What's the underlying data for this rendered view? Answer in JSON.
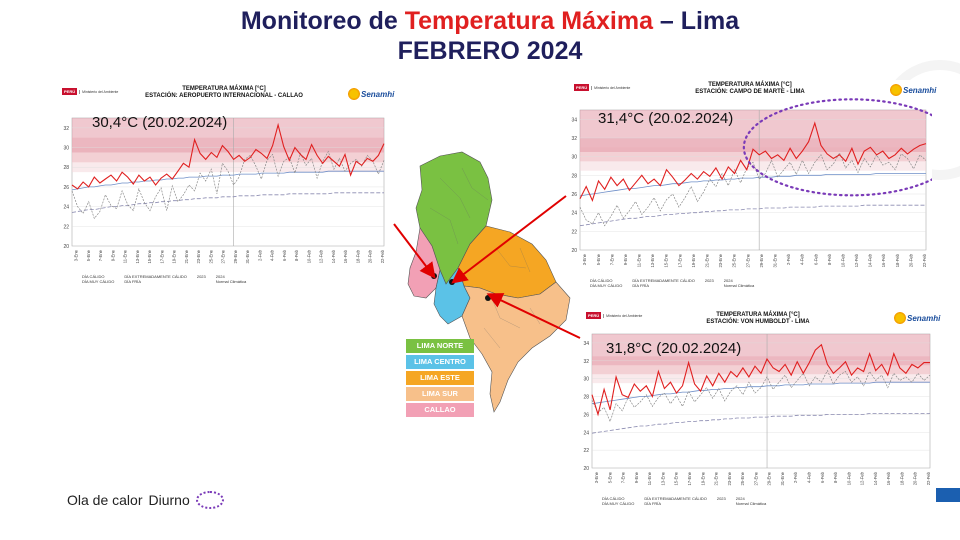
{
  "title": {
    "prefix": "Monitoreo de ",
    "highlight": "Temperatura Máxima",
    "suffix": " – Lima",
    "line2": "FEBRERO 2024"
  },
  "logos": {
    "peru": "PERÚ",
    "ministerio": "Ministerio del Ambiente",
    "senamhi": "Senamhi"
  },
  "colors": {
    "title": "#1f1f5c",
    "highlight": "#e02020",
    "series_2024": "#e02020",
    "series_2023": "#888888",
    "normal": "#6f8fc8",
    "dia_frio": "#8a8ab0",
    "band_calido": "#f4d9dd",
    "band_muy_calido": "#eeb9c1",
    "band_extremo": "#e49aa7",
    "lima_norte": "#7ac142",
    "lima_centro": "#5bc2e7",
    "lima_este": "#f5a623",
    "lima_sur": "#f7c08a",
    "callao": "#f2a0b5",
    "ola_calor": "#7a3ab8"
  },
  "legend_labels": {
    "dia_calido": "DÍA CÁLIDO",
    "dia_muy_calido": "DÍA MUY CÁLIDO",
    "dia_extremo": "DÍA EXTREMADAMENTE CÁLIDO",
    "dia_frio": "DÍA FRÍA",
    "s2023": "2023",
    "s2024": "2024",
    "normal": "Normal Climática"
  },
  "map_legend": [
    {
      "label": "LIMA NORTE",
      "color": "#7ac142"
    },
    {
      "label": "LIMA CENTRO",
      "color": "#5bc2e7"
    },
    {
      "label": "LIMA ESTE",
      "color": "#f5a623"
    },
    {
      "label": "LIMA SUR",
      "color": "#f7c08a"
    },
    {
      "label": "CALLAO",
      "color": "#f2a0b5"
    }
  ],
  "bottom_legend": {
    "label1": "Ola de calor",
    "label2": "Diurno"
  },
  "chart_data": [
    {
      "type": "line",
      "title": "TEMPERATURA MÁXIMA [°C]",
      "subtitle": "ESTACIÓN: AEROPUERTO INTERNACIONAL - CALLAO",
      "annotation": "30,4°C (20.02.2024)",
      "ylim": [
        20,
        33
      ],
      "yticks": [
        20,
        22,
        24,
        26,
        28,
        30,
        32
      ],
      "xticks": [
        "3-Ene",
        "5-Ene",
        "7-Ene",
        "9-Ene",
        "11-Ene",
        "13-Ene",
        "15-Ene",
        "17-Ene",
        "19-Ene",
        "21-Ene",
        "23-Ene",
        "25-Ene",
        "27-Ene",
        "29-Ene",
        "31-Ene",
        "2-Feb",
        "4-Feb",
        "6-Feb",
        "8-Feb",
        "10-Feb",
        "12-Feb",
        "14-Feb",
        "16-Feb",
        "18-Feb",
        "20-Feb",
        "22-Feb"
      ],
      "series": [
        {
          "name": "2024",
          "values": [
            26.2,
            25.8,
            26.5,
            26.0,
            27.0,
            26.4,
            26.8,
            27.2,
            26.6,
            27.5,
            27.0,
            26.3,
            27.2,
            26.6,
            27.0,
            26.2,
            26.9,
            27.3,
            26.8,
            27.6,
            28.4,
            28.0,
            30.8,
            29.4,
            28.8,
            29.5,
            29.0,
            30.2,
            29.6,
            28.8,
            29.2,
            28.6,
            29.0,
            29.8,
            29.4,
            28.9,
            30.2,
            32.3,
            30.1,
            28.7,
            30.0,
            29.3,
            28.8,
            30.3,
            29.2,
            28.4,
            29.1,
            28.6,
            28.1,
            29.3,
            27.2,
            28.6,
            28.2,
            28.9,
            28.6,
            29.2,
            30.4
          ]
        },
        {
          "name": "2023",
          "values": [
            25.6,
            24.0,
            23.3,
            24.5,
            22.8,
            23.5,
            25.2,
            24.1,
            23.8,
            25.6,
            24.2,
            23.6,
            25.8,
            24.4,
            23.6,
            25.0,
            25.9,
            23.6,
            26.1,
            24.5,
            25.2,
            26.2,
            25.6,
            27.4,
            26.6,
            27.8,
            25.3,
            28.4,
            27.6,
            26.2,
            27.0,
            28.8,
            29.2,
            28.1,
            26.8,
            28.7,
            29.3,
            27.1,
            28.6,
            29.0,
            27.4,
            29.4,
            28.2,
            28.9,
            26.9,
            28.6,
            29.6,
            27.8,
            28.9,
            27.6,
            28.4,
            28.8,
            28.1,
            29.2,
            28.6,
            27.3,
            28.7
          ]
        },
        {
          "name": "Normal Climática",
          "values": [
            25.7,
            25.8,
            25.9,
            26.0,
            26.0,
            26.1,
            26.2,
            26.2,
            26.3,
            26.4,
            26.4,
            26.5,
            26.5,
            26.6,
            26.6,
            26.7,
            26.7,
            26.8,
            26.8,
            26.9,
            26.9,
            27.0,
            27.0,
            27.0,
            27.1,
            27.1,
            27.1,
            27.2,
            27.2,
            27.2,
            27.3,
            27.3,
            27.3,
            27.3,
            27.4,
            27.4,
            27.4,
            27.4,
            27.4,
            27.5,
            27.5,
            27.5,
            27.5,
            27.5,
            27.5,
            27.5,
            27.6,
            27.6,
            27.6,
            27.6,
            27.6,
            27.6,
            27.6,
            27.6,
            27.6,
            27.6,
            27.6
          ]
        },
        {
          "name": "DÍA FRÍA",
          "values": [
            23.4,
            23.5,
            23.6,
            23.7,
            23.7,
            23.8,
            23.9,
            24.0,
            24.0,
            24.1,
            24.1,
            24.2,
            24.3,
            24.3,
            24.4,
            24.4,
            24.5,
            24.5,
            24.6,
            24.6,
            24.7,
            24.7,
            24.8,
            24.8,
            24.9,
            24.9,
            24.9,
            25.0,
            25.0,
            25.0,
            25.1,
            25.1,
            25.1,
            25.1,
            25.2,
            25.2,
            25.2,
            25.2,
            25.2,
            25.3,
            25.3,
            25.3,
            25.3,
            25.3,
            25.3,
            25.3,
            25.3,
            25.4,
            25.4,
            25.4,
            25.4,
            25.4,
            25.4,
            25.4,
            25.4,
            25.4,
            25.4
          ]
        }
      ],
      "bands": {
        "calido": [
          27.5,
          30.0
        ],
        "muy_calido": [
          28.5,
          31.0
        ],
        "extremo": [
          29.5,
          33.0
        ]
      }
    },
    {
      "type": "line",
      "title": "TEMPERATURA MÁXIMA [°C]",
      "subtitle": "ESTACIÓN: CAMPO DE MARTE - LIMA",
      "annotation": "31,4°C (20.02.2024)",
      "ylim": [
        20,
        35
      ],
      "yticks": [
        20,
        22,
        24,
        26,
        28,
        30,
        32,
        34
      ],
      "xticks": [
        "3-Ene",
        "5-Ene",
        "7-Ene",
        "9-Ene",
        "11-Ene",
        "13-Ene",
        "15-Ene",
        "17-Ene",
        "19-Ene",
        "21-Ene",
        "23-Ene",
        "25-Ene",
        "27-Ene",
        "29-Ene",
        "31-Ene",
        "2-Feb",
        "4-Feb",
        "6-Feb",
        "8-Feb",
        "10-Feb",
        "12-Feb",
        "14-Feb",
        "16-Feb",
        "18-Feb",
        "20-Feb",
        "22-Feb"
      ],
      "series": [
        {
          "name": "2024",
          "values": [
            25.5,
            26.8,
            25.3,
            27.4,
            26.5,
            27.8,
            26.9,
            27.6,
            26.4,
            27.2,
            28.0,
            27.1,
            27.6,
            26.9,
            28.6,
            27.8,
            26.9,
            27.5,
            28.2,
            27.6,
            28.4,
            27.9,
            28.8,
            27.6,
            28.9,
            28.2,
            29.6,
            28.6,
            30.8,
            30.2,
            30.6,
            29.8,
            30.2,
            29.6,
            30.9,
            29.8,
            30.6,
            31.6,
            33.6,
            31.2,
            30.3,
            29.8,
            30.2,
            29.5,
            30.9,
            29.2,
            30.6,
            31.0,
            30.2,
            30.6,
            29.8,
            30.2,
            30.9,
            30.3,
            30.8,
            31.2,
            31.4
          ]
        },
        {
          "name": "2023",
          "values": [
            24.6,
            23.2,
            22.8,
            24.0,
            22.6,
            23.6,
            24.8,
            23.4,
            24.2,
            25.2,
            23.8,
            24.6,
            25.6,
            24.2,
            25.4,
            26.0,
            24.6,
            25.6,
            26.8,
            25.2,
            26.2,
            27.6,
            26.8,
            28.2,
            26.9,
            28.6,
            27.2,
            28.8,
            29.4,
            27.6,
            28.2,
            29.6,
            27.8,
            28.6,
            29.4,
            28.1,
            29.6,
            28.2,
            29.4,
            30.2,
            28.6,
            29.2,
            30.4,
            28.8,
            29.6,
            28.3,
            29.8,
            28.9,
            30.2,
            29.1,
            29.4,
            28.6,
            30.3,
            29.8,
            28.7,
            30.2,
            29.6
          ]
        },
        {
          "name": "Normal Climática",
          "values": [
            25.8,
            25.9,
            26.0,
            26.1,
            26.2,
            26.3,
            26.4,
            26.5,
            26.6,
            26.6,
            26.7,
            26.8,
            26.9,
            26.9,
            27.0,
            27.1,
            27.1,
            27.2,
            27.3,
            27.3,
            27.4,
            27.4,
            27.5,
            27.5,
            27.6,
            27.6,
            27.7,
            27.7,
            27.7,
            27.8,
            27.8,
            27.8,
            27.9,
            27.9,
            27.9,
            28.0,
            28.0,
            28.0,
            28.0,
            28.0,
            28.1,
            28.1,
            28.1,
            28.1,
            28.1,
            28.1,
            28.1,
            28.1,
            28.2,
            28.2,
            28.2,
            28.2,
            28.2,
            28.2,
            28.2,
            28.2,
            28.2
          ]
        },
        {
          "name": "DÍA FRÍA",
          "values": [
            22.6,
            22.7,
            22.8,
            22.9,
            23.0,
            23.1,
            23.2,
            23.3,
            23.4,
            23.4,
            23.5,
            23.6,
            23.6,
            23.7,
            23.8,
            23.8,
            23.9,
            23.9,
            24.0,
            24.0,
            24.1,
            24.1,
            24.2,
            24.2,
            24.3,
            24.3,
            24.3,
            24.4,
            24.4,
            24.4,
            24.5,
            24.5,
            24.5,
            24.5,
            24.6,
            24.6,
            24.6,
            24.6,
            24.6,
            24.7,
            24.7,
            24.7,
            24.7,
            24.7,
            24.7,
            24.7,
            24.8,
            24.8,
            24.8,
            24.8,
            24.8,
            24.8,
            24.8,
            24.8,
            24.8,
            24.8,
            24.8
          ]
        }
      ],
      "bands": {
        "calido": [
          28.5,
          31.0
        ],
        "muy_calido": [
          29.5,
          32.0
        ],
        "extremo": [
          30.5,
          35.0
        ]
      }
    },
    {
      "type": "line",
      "title": "TEMPERATURA MÁXIMA [°C]",
      "subtitle": "ESTACIÓN: VON HUMBOLDT - LIMA",
      "annotation": "31,8°C (20.02.2024)",
      "ylim": [
        20,
        35
      ],
      "yticks": [
        20,
        22,
        24,
        26,
        28,
        30,
        32,
        34
      ],
      "xticks": [
        "3-Ene",
        "5-Ene",
        "7-Ene",
        "9-Ene",
        "11-Ene",
        "13-Ene",
        "15-Ene",
        "17-Ene",
        "19-Ene",
        "21-Ene",
        "23-Ene",
        "25-Ene",
        "27-Ene",
        "29-Ene",
        "31-Ene",
        "2-Feb",
        "4-Feb",
        "6-Feb",
        "8-Feb",
        "10-Feb",
        "12-Feb",
        "14-Feb",
        "16-Feb",
        "18-Feb",
        "20-Feb",
        "22-Feb"
      ],
      "series": [
        {
          "name": "2024",
          "values": [
            28.2,
            26.0,
            28.8,
            26.5,
            30.2,
            28.2,
            27.9,
            29.4,
            28.6,
            29.2,
            28.0,
            30.8,
            28.9,
            29.6,
            28.4,
            29.2,
            31.8,
            29.4,
            28.6,
            30.3,
            29.2,
            30.6,
            29.6,
            30.8,
            30.2,
            31.2,
            30.2,
            31.4,
            30.6,
            32.2,
            31.2,
            30.8,
            31.6,
            30.4,
            31.9,
            30.6,
            31.8,
            33.2,
            33.8,
            31.6,
            30.6,
            31.2,
            31.9,
            30.4,
            31.2,
            30.8,
            32.8,
            30.9,
            31.6,
            30.4,
            32.8,
            31.2,
            30.6,
            31.6,
            31.2,
            31.8,
            31.8
          ]
        },
        {
          "name": "2023",
          "values": [
            27.6,
            26.2,
            26.8,
            25.2,
            27.2,
            26.4,
            27.9,
            26.8,
            27.4,
            28.2,
            26.9,
            27.9,
            28.4,
            27.2,
            28.1,
            26.9,
            28.6,
            27.4,
            28.2,
            29.0,
            27.8,
            28.9,
            27.5,
            28.6,
            29.2,
            28.2,
            29.6,
            28.4,
            29.0,
            30.2,
            28.8,
            29.6,
            30.4,
            29.0,
            29.8,
            30.6,
            29.2,
            30.2,
            29.6,
            30.9,
            29.4,
            30.4,
            30.8,
            29.6,
            30.2,
            29.2,
            30.8,
            29.8,
            30.4,
            29.0,
            30.6,
            29.8,
            30.2,
            29.6,
            30.6,
            29.8,
            30.4
          ]
        },
        {
          "name": "Normal Climática",
          "values": [
            27.2,
            27.3,
            27.4,
            27.5,
            27.6,
            27.7,
            27.8,
            27.9,
            28.0,
            28.0,
            28.1,
            28.2,
            28.3,
            28.3,
            28.4,
            28.5,
            28.5,
            28.6,
            28.7,
            28.7,
            28.8,
            28.8,
            28.9,
            28.9,
            29.0,
            29.0,
            29.1,
            29.1,
            29.1,
            29.2,
            29.2,
            29.2,
            29.3,
            29.3,
            29.3,
            29.3,
            29.4,
            29.4,
            29.4,
            29.4,
            29.4,
            29.5,
            29.5,
            29.5,
            29.5,
            29.5,
            29.5,
            29.6,
            29.6,
            29.6,
            29.6,
            29.6,
            29.6,
            29.6,
            29.6,
            29.6,
            29.6
          ]
        },
        {
          "name": "DÍA FRÍA",
          "values": [
            23.9,
            24.0,
            24.1,
            24.2,
            24.3,
            24.4,
            24.5,
            24.6,
            24.7,
            24.7,
            24.8,
            24.9,
            24.9,
            25.0,
            25.1,
            25.1,
            25.2,
            25.2,
            25.3,
            25.3,
            25.4,
            25.4,
            25.5,
            25.5,
            25.6,
            25.6,
            25.6,
            25.7,
            25.7,
            25.7,
            25.8,
            25.8,
            25.8,
            25.8,
            25.9,
            25.9,
            25.9,
            25.9,
            25.9,
            26.0,
            26.0,
            26.0,
            26.0,
            26.0,
            26.0,
            26.0,
            26.1,
            26.1,
            26.1,
            26.1,
            26.1,
            26.1,
            26.1,
            26.1,
            26.1,
            26.1,
            26.1
          ]
        }
      ],
      "bands": {
        "calido": [
          29.5,
          31.5
        ],
        "muy_calido": [
          30.5,
          32.5
        ],
        "extremo": [
          31.5,
          35.0
        ]
      }
    }
  ]
}
